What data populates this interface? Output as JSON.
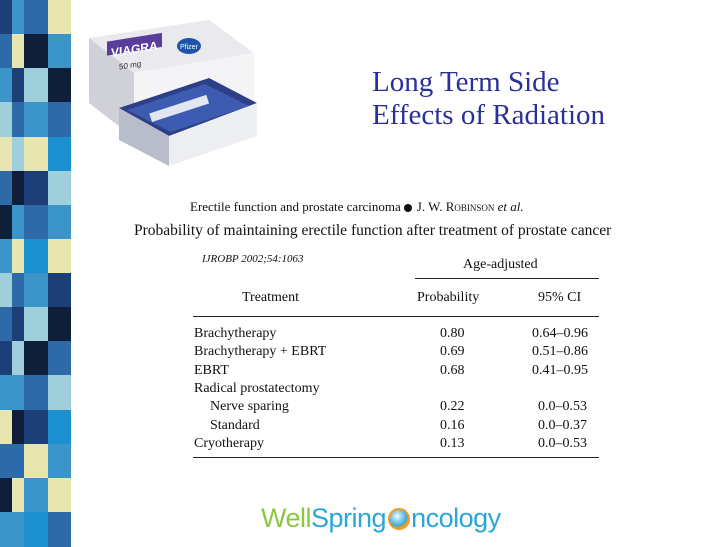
{
  "colors": {
    "title": "#2b2f9a",
    "stripe_palette": [
      "#1d3f77",
      "#2e6aa8",
      "#3b95c8",
      "#9fcfdb",
      "#e8e6b0",
      "#0f1f3a",
      "#1c8fcf"
    ],
    "logo_green": "#8dc63f",
    "logo_blue": "#2aa6d9",
    "logo_orange": "#f59a23"
  },
  "slide": {
    "title_line1": "Long Term Side",
    "title_line2": "Effects of Radiation"
  },
  "product": {
    "brand": "VIAGRA",
    "dose": "50 mg",
    "maker": "Pfizer",
    "icon": "pill-box-photo"
  },
  "article": {
    "running_head_prefix": "Erectile function and prostate carcinoma",
    "running_head_author": "J. W. Robinson",
    "running_head_etal": "et al.",
    "caption": "Probability of maintaining erectile function after treatment of prostate cancer",
    "citation": "IJROBP 2002;54:1063"
  },
  "table": {
    "group_header": "Age-adjusted",
    "headers": {
      "treatment": "Treatment",
      "probability": "Probability",
      "ci": "95% CI"
    },
    "rows": [
      {
        "treatment": "Brachytherapy",
        "probability": "0.80",
        "ci": "0.64–0.96"
      },
      {
        "treatment": "Brachytherapy + EBRT",
        "probability": "0.69",
        "ci": "0.51–0.86"
      },
      {
        "treatment": "EBRT",
        "probability": "0.68",
        "ci": "0.41–0.95"
      },
      {
        "treatment": "Radical prostatectomy",
        "probability": "",
        "ci": ""
      },
      {
        "treatment": "Nerve sparing",
        "probability": "0.22",
        "ci": "0.0–0.53"
      },
      {
        "treatment": "Standard",
        "probability": "0.16",
        "ci": "0.0–0.37"
      },
      {
        "treatment": "Cryotherapy",
        "probability": "0.13",
        "ci": "0.0–0.53"
      }
    ]
  },
  "logo": {
    "part1": "Well",
    "part2": "Spring",
    "part3": "ncology"
  }
}
